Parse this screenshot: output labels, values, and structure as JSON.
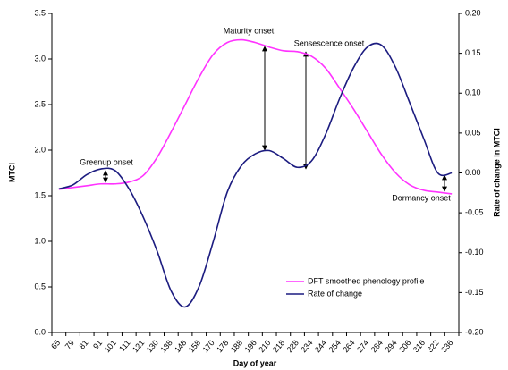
{
  "chart_data": {
    "type": "line",
    "x_label": "Day of year",
    "y_label": "MTCI",
    "y2_label": "Rate of change in MTCI",
    "categories": [
      "65",
      "79",
      "81",
      "91",
      "101",
      "111",
      "121",
      "130",
      "138",
      "148",
      "158",
      "170",
      "178",
      "188",
      "196",
      "210",
      "218",
      "228",
      "234",
      "244",
      "254",
      "264",
      "274",
      "284",
      "294",
      "306",
      "316",
      "322",
      "336"
    ],
    "series": [
      {
        "name": "DFT smoothed phenology profile",
        "color": "#ff33ff",
        "values": [
          1.57,
          1.59,
          1.61,
          1.63,
          1.63,
          1.65,
          1.72,
          1.92,
          2.2,
          2.5,
          2.8,
          3.05,
          3.18,
          3.21,
          3.18,
          3.13,
          3.09,
          3.08,
          3.03,
          2.9,
          2.68,
          2.45,
          2.2,
          1.95,
          1.75,
          1.62,
          1.56,
          1.54,
          1.52
        ]
      },
      {
        "name": "Rate of change",
        "color": "#1c1c80",
        "axis": "y2",
        "values": [
          -0.02,
          -0.015,
          -0.002,
          0.005,
          0.003,
          -0.02,
          -0.055,
          -0.098,
          -0.148,
          -0.168,
          -0.142,
          -0.086,
          -0.024,
          0.009,
          0.024,
          0.028,
          0.018,
          0.007,
          0.015,
          0.048,
          0.093,
          0.132,
          0.158,
          0.16,
          0.132,
          0.088,
          0.043,
          0.0,
          0.0
        ]
      }
    ],
    "ylim": [
      0,
      3.5
    ],
    "yticks": [
      {
        "value": 0,
        "label": "0.0"
      },
      0.5,
      {
        "value": 1,
        "label": "1.0"
      },
      1.5,
      {
        "value": 2,
        "label": "2.0"
      },
      2.5,
      {
        "value": 3,
        "label": "3.0"
      },
      3.5
    ],
    "y2lim": [
      -0.2,
      0.2
    ],
    "y2ticks": [
      {
        "value": -0.2,
        "label": "-0.20"
      },
      {
        "value": -0.15,
        "label": "-0.15"
      },
      {
        "value": -0.1,
        "label": "-0.10"
      },
      {
        "value": -0.05,
        "label": "-0.05"
      },
      {
        "value": 0,
        "label": "0.00"
      },
      {
        "value": 0.05,
        "label": "0.05"
      },
      {
        "value": 0.1,
        "label": "0.10"
      },
      {
        "value": 0.15,
        "label": "0.15"
      },
      {
        "value": 0.2,
        "label": "0.20"
      }
    ],
    "annotations": [
      "Greenup onset",
      "Maturity onset",
      "Sensescence onset",
      "Dormancy onset"
    ],
    "legend": "lower right",
    "grid": false
  }
}
